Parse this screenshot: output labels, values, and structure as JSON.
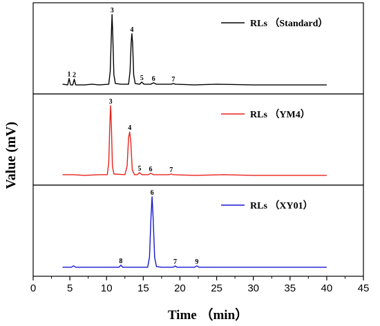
{
  "chart_data": {
    "type": "line",
    "title": "",
    "xlabel": "Time （min）",
    "ylabel": "Value (mV)",
    "xlim": [
      0,
      45
    ],
    "xticks": [
      0,
      5,
      10,
      15,
      20,
      25,
      30,
      35,
      40,
      45
    ],
    "grid": false,
    "layout": "three stacked panels sharing the x axis",
    "panels": [
      {
        "name": "RLs （Standard）",
        "color": "#000000",
        "legend": "top-right",
        "points": [
          {
            "x": 4.0,
            "y": 2
          },
          {
            "x": 4.7,
            "y": 1
          },
          {
            "x": 4.9,
            "y": 10
          },
          {
            "x": 5.1,
            "y": 1
          },
          {
            "x": 5.4,
            "y": 1
          },
          {
            "x": 5.6,
            "y": 9
          },
          {
            "x": 5.8,
            "y": 1
          },
          {
            "x": 7.0,
            "y": 1
          },
          {
            "x": 8.0,
            "y": 2
          },
          {
            "x": 9.0,
            "y": 1
          },
          {
            "x": 10.3,
            "y": 2
          },
          {
            "x": 10.5,
            "y": 20
          },
          {
            "x": 10.65,
            "y": 70
          },
          {
            "x": 10.75,
            "y": 100
          },
          {
            "x": 10.85,
            "y": 70
          },
          {
            "x": 11.0,
            "y": 15
          },
          {
            "x": 11.2,
            "y": 3
          },
          {
            "x": 12.0,
            "y": 2
          },
          {
            "x": 13.0,
            "y": 2
          },
          {
            "x": 13.2,
            "y": 20
          },
          {
            "x": 13.35,
            "y": 60
          },
          {
            "x": 13.45,
            "y": 73
          },
          {
            "x": 13.55,
            "y": 60
          },
          {
            "x": 13.7,
            "y": 15
          },
          {
            "x": 13.9,
            "y": 3
          },
          {
            "x": 14.5,
            "y": 2
          },
          {
            "x": 14.8,
            "y": 5
          },
          {
            "x": 15.1,
            "y": 2
          },
          {
            "x": 16.0,
            "y": 2
          },
          {
            "x": 16.4,
            "y": 4
          },
          {
            "x": 16.8,
            "y": 2
          },
          {
            "x": 18.8,
            "y": 2
          },
          {
            "x": 19.1,
            "y": 3
          },
          {
            "x": 19.4,
            "y": 2
          },
          {
            "x": 22.0,
            "y": 1
          },
          {
            "x": 25.0,
            "y": 2
          },
          {
            "x": 30.0,
            "y": 1
          },
          {
            "x": 35.0,
            "y": 1
          },
          {
            "x": 40.0,
            "y": 1
          }
        ],
        "peaks": [
          {
            "label": "1",
            "x": 4.9
          },
          {
            "label": "2",
            "x": 5.6
          },
          {
            "label": "3",
            "x": 10.75
          },
          {
            "label": "4",
            "x": 13.45
          },
          {
            "label": "5",
            "x": 14.8
          },
          {
            "label": "6",
            "x": 16.4
          },
          {
            "label": "7",
            "x": 19.1
          }
        ]
      },
      {
        "name": "RLs （YM4）",
        "color": "#e8201a",
        "legend": "top-right",
        "points": [
          {
            "x": 4.0,
            "y": 3
          },
          {
            "x": 5.5,
            "y": 3
          },
          {
            "x": 7.0,
            "y": 2
          },
          {
            "x": 9.0,
            "y": 3
          },
          {
            "x": 10.1,
            "y": 3
          },
          {
            "x": 10.3,
            "y": 20
          },
          {
            "x": 10.45,
            "y": 75
          },
          {
            "x": 10.55,
            "y": 100
          },
          {
            "x": 10.65,
            "y": 75
          },
          {
            "x": 10.8,
            "y": 15
          },
          {
            "x": 11.0,
            "y": 4
          },
          {
            "x": 12.5,
            "y": 3
          },
          {
            "x": 12.8,
            "y": 15
          },
          {
            "x": 13.0,
            "y": 55
          },
          {
            "x": 13.15,
            "y": 63
          },
          {
            "x": 13.3,
            "y": 50
          },
          {
            "x": 13.5,
            "y": 10
          },
          {
            "x": 13.8,
            "y": 3
          },
          {
            "x": 14.2,
            "y": 3
          },
          {
            "x": 14.5,
            "y": 6
          },
          {
            "x": 14.8,
            "y": 3
          },
          {
            "x": 15.7,
            "y": 3
          },
          {
            "x": 16.0,
            "y": 5
          },
          {
            "x": 16.4,
            "y": 3
          },
          {
            "x": 18.5,
            "y": 3
          },
          {
            "x": 18.8,
            "y": 4
          },
          {
            "x": 19.1,
            "y": 3
          },
          {
            "x": 22.0,
            "y": 2
          },
          {
            "x": 26.0,
            "y": 3
          },
          {
            "x": 30.0,
            "y": 2
          },
          {
            "x": 35.0,
            "y": 2
          },
          {
            "x": 40.0,
            "y": 2
          }
        ],
        "peaks": [
          {
            "label": "3",
            "x": 10.55
          },
          {
            "label": "4",
            "x": 13.15
          },
          {
            "label": "5",
            "x": 14.5
          },
          {
            "label": "6",
            "x": 16.0
          },
          {
            "label": "7",
            "x": 18.8
          }
        ]
      },
      {
        "name": "RLs （XY01）",
        "color": "#1515d6",
        "legend": "top-right",
        "points": [
          {
            "x": 4.0,
            "y": 1
          },
          {
            "x": 5.2,
            "y": 1
          },
          {
            "x": 5.5,
            "y": 3
          },
          {
            "x": 5.8,
            "y": 1
          },
          {
            "x": 8.0,
            "y": 1
          },
          {
            "x": 10.0,
            "y": 1
          },
          {
            "x": 11.7,
            "y": 1
          },
          {
            "x": 11.95,
            "y": 4
          },
          {
            "x": 12.2,
            "y": 1
          },
          {
            "x": 15.6,
            "y": 1
          },
          {
            "x": 15.85,
            "y": 15
          },
          {
            "x": 16.05,
            "y": 70
          },
          {
            "x": 16.2,
            "y": 100
          },
          {
            "x": 16.35,
            "y": 70
          },
          {
            "x": 16.55,
            "y": 15
          },
          {
            "x": 16.8,
            "y": 2
          },
          {
            "x": 17.5,
            "y": 1
          },
          {
            "x": 19.1,
            "y": 1
          },
          {
            "x": 19.35,
            "y": 3
          },
          {
            "x": 19.6,
            "y": 1
          },
          {
            "x": 22.0,
            "y": 1
          },
          {
            "x": 22.3,
            "y": 3
          },
          {
            "x": 22.6,
            "y": 1
          },
          {
            "x": 26.0,
            "y": 1
          },
          {
            "x": 30.0,
            "y": 1
          },
          {
            "x": 35.0,
            "y": 1
          },
          {
            "x": 40.0,
            "y": 1
          }
        ],
        "peaks": [
          {
            "label": "6",
            "x": 16.2
          },
          {
            "label": "7",
            "x": 19.35
          },
          {
            "label": "8",
            "x": 11.95
          },
          {
            "label": "9",
            "x": 22.3
          }
        ]
      }
    ]
  }
}
